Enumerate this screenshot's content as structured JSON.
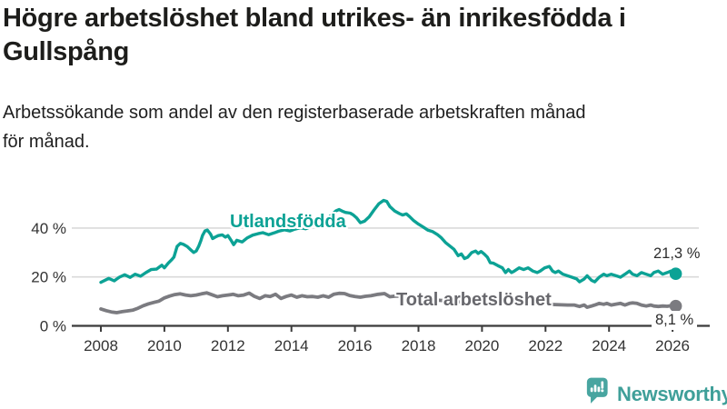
{
  "header": {
    "title": "Högre arbetslöshet bland utrikes- än inrikesfödda i\nGullspång",
    "subtitle": "Arbetssökande som andel av den registerbaserade arbetskraften månad\nför månad."
  },
  "footer": {
    "brand": "Newsworthy",
    "brand_color": "#3f9f99",
    "logo_icon": "bar-chart-speech-bubble"
  },
  "chart_data": {
    "type": "line",
    "x_ticks": [
      2008,
      2010,
      2012,
      2014,
      2016,
      2018,
      2020,
      2022,
      2024,
      2026
    ],
    "y_ticks": [
      {
        "value": 0,
        "label": "0 %"
      },
      {
        "value": 20,
        "label": "20 %"
      },
      {
        "value": 40,
        "label": "40 %"
      }
    ],
    "ylim": [
      0,
      55
    ],
    "xlim": [
      2007.2,
      2027.2
    ],
    "grid": "horizontal-only",
    "legend_position": "inline-labels-on-lines",
    "axis_color": "#3b3b3b",
    "gridline_color": "#dadada",
    "series": [
      {
        "id": "utlandsfodda",
        "name": "Utlandsfödda",
        "color": "#0ca295",
        "width": 3.4,
        "end_label": "21,3 %",
        "end_value": 21.3,
        "points": [
          [
            2008.0,
            17.8
          ],
          [
            2008.25,
            19.4
          ],
          [
            2008.42,
            18.4
          ],
          [
            2008.58,
            19.9
          ],
          [
            2008.75,
            20.9
          ],
          [
            2008.92,
            19.8
          ],
          [
            2009.08,
            21.1
          ],
          [
            2009.25,
            20.3
          ],
          [
            2009.42,
            21.8
          ],
          [
            2009.58,
            23.0
          ],
          [
            2009.75,
            23.2
          ],
          [
            2009.92,
            24.8
          ],
          [
            2010.0,
            23.7
          ],
          [
            2010.12,
            25.6
          ],
          [
            2010.22,
            26.9
          ],
          [
            2010.3,
            28.1
          ],
          [
            2010.4,
            32.5
          ],
          [
            2010.5,
            33.7
          ],
          [
            2010.6,
            33.3
          ],
          [
            2010.72,
            32.4
          ],
          [
            2010.82,
            31.2
          ],
          [
            2010.92,
            30.0
          ],
          [
            2011.0,
            30.6
          ],
          [
            2011.08,
            32.5
          ],
          [
            2011.15,
            34.9
          ],
          [
            2011.2,
            36.9
          ],
          [
            2011.28,
            38.8
          ],
          [
            2011.35,
            39.2
          ],
          [
            2011.45,
            37.6
          ],
          [
            2011.52,
            35.7
          ],
          [
            2011.6,
            36.3
          ],
          [
            2011.7,
            36.9
          ],
          [
            2011.82,
            37.2
          ],
          [
            2011.92,
            36.3
          ],
          [
            2012.0,
            36.9
          ],
          [
            2012.1,
            35.0
          ],
          [
            2012.18,
            33.2
          ],
          [
            2012.28,
            35.0
          ],
          [
            2012.45,
            34.3
          ],
          [
            2012.6,
            35.9
          ],
          [
            2012.78,
            37.1
          ],
          [
            2012.95,
            37.7
          ],
          [
            2013.1,
            38.1
          ],
          [
            2013.28,
            37.3
          ],
          [
            2013.45,
            38.0
          ],
          [
            2013.6,
            38.7
          ],
          [
            2013.78,
            39.3
          ],
          [
            2013.95,
            38.8
          ],
          [
            2014.1,
            39.5
          ],
          [
            2014.28,
            40.1
          ],
          [
            2014.45,
            39.7
          ],
          [
            2014.6,
            40.5
          ],
          [
            2014.78,
            41.2
          ],
          [
            2014.95,
            42.2
          ],
          [
            2015.1,
            43.5
          ],
          [
            2015.25,
            45.2
          ],
          [
            2015.4,
            47.0
          ],
          [
            2015.5,
            47.6
          ],
          [
            2015.6,
            46.9
          ],
          [
            2015.7,
            46.4
          ],
          [
            2015.85,
            46.1
          ],
          [
            2015.95,
            45.3
          ],
          [
            2016.05,
            44.2
          ],
          [
            2016.17,
            42.2
          ],
          [
            2016.3,
            42.8
          ],
          [
            2016.45,
            44.6
          ],
          [
            2016.6,
            47.4
          ],
          [
            2016.75,
            49.9
          ],
          [
            2016.9,
            51.3
          ],
          [
            2017.0,
            50.9
          ],
          [
            2017.1,
            48.8
          ],
          [
            2017.25,
            47.0
          ],
          [
            2017.4,
            45.9
          ],
          [
            2017.5,
            45.3
          ],
          [
            2017.62,
            45.8
          ],
          [
            2017.72,
            44.7
          ],
          [
            2017.85,
            43.0
          ],
          [
            2018.0,
            41.6
          ],
          [
            2018.15,
            40.4
          ],
          [
            2018.3,
            39.1
          ],
          [
            2018.45,
            38.5
          ],
          [
            2018.6,
            37.3
          ],
          [
            2018.72,
            36.0
          ],
          [
            2018.85,
            34.1
          ],
          [
            2019.0,
            32.5
          ],
          [
            2019.12,
            31.3
          ],
          [
            2019.25,
            28.7
          ],
          [
            2019.35,
            29.4
          ],
          [
            2019.45,
            27.5
          ],
          [
            2019.55,
            28.1
          ],
          [
            2019.68,
            30.0
          ],
          [
            2019.8,
            30.6
          ],
          [
            2019.88,
            29.6
          ],
          [
            2019.97,
            30.4
          ],
          [
            2020.07,
            29.4
          ],
          [
            2020.17,
            28.1
          ],
          [
            2020.26,
            25.8
          ],
          [
            2020.36,
            25.6
          ],
          [
            2020.5,
            24.6
          ],
          [
            2020.64,
            23.7
          ],
          [
            2020.74,
            21.8
          ],
          [
            2020.83,
            23.0
          ],
          [
            2020.93,
            21.8
          ],
          [
            2021.02,
            22.4
          ],
          [
            2021.17,
            23.7
          ],
          [
            2021.31,
            23.0
          ],
          [
            2021.45,
            23.7
          ],
          [
            2021.6,
            22.4
          ],
          [
            2021.74,
            21.8
          ],
          [
            2021.83,
            22.4
          ],
          [
            2021.97,
            23.7
          ],
          [
            2022.12,
            24.3
          ],
          [
            2022.22,
            22.4
          ],
          [
            2022.31,
            21.8
          ],
          [
            2022.41,
            22.4
          ],
          [
            2022.55,
            21.1
          ],
          [
            2022.69,
            20.5
          ],
          [
            2022.83,
            19.9
          ],
          [
            2022.98,
            19.2
          ],
          [
            2023.07,
            18.0
          ],
          [
            2023.22,
            19.2
          ],
          [
            2023.31,
            20.5
          ],
          [
            2023.45,
            18.6
          ],
          [
            2023.55,
            18.0
          ],
          [
            2023.69,
            19.9
          ],
          [
            2023.83,
            21.1
          ],
          [
            2023.93,
            20.5
          ],
          [
            2024.07,
            21.1
          ],
          [
            2024.22,
            20.5
          ],
          [
            2024.36,
            19.9
          ],
          [
            2024.5,
            21.1
          ],
          [
            2024.64,
            22.4
          ],
          [
            2024.74,
            21.1
          ],
          [
            2024.88,
            20.5
          ],
          [
            2025.02,
            21.8
          ],
          [
            2025.17,
            21.1
          ],
          [
            2025.31,
            20.5
          ],
          [
            2025.41,
            21.8
          ],
          [
            2025.55,
            22.4
          ],
          [
            2025.69,
            21.1
          ],
          [
            2025.83,
            21.8
          ],
          [
            2025.95,
            22.4
          ],
          [
            2026.1,
            21.3
          ]
        ]
      },
      {
        "id": "total",
        "name": "Total arbetslöshet",
        "color": "#7b7b80",
        "width": 3.8,
        "end_label": "8,1 %",
        "end_value": 8.1,
        "points": [
          [
            2008.0,
            6.9
          ],
          [
            2008.17,
            6.2
          ],
          [
            2008.33,
            5.7
          ],
          [
            2008.5,
            5.4
          ],
          [
            2008.67,
            5.8
          ],
          [
            2008.83,
            6.1
          ],
          [
            2009.0,
            6.4
          ],
          [
            2009.17,
            7.2
          ],
          [
            2009.33,
            8.2
          ],
          [
            2009.5,
            9.0
          ],
          [
            2009.67,
            9.6
          ],
          [
            2009.83,
            10.1
          ],
          [
            2010.0,
            11.4
          ],
          [
            2010.17,
            12.2
          ],
          [
            2010.33,
            12.8
          ],
          [
            2010.5,
            13.1
          ],
          [
            2010.67,
            12.6
          ],
          [
            2010.83,
            12.3
          ],
          [
            2011.0,
            12.6
          ],
          [
            2011.17,
            13.1
          ],
          [
            2011.33,
            13.5
          ],
          [
            2011.5,
            12.7
          ],
          [
            2011.67,
            11.9
          ],
          [
            2011.83,
            12.3
          ],
          [
            2012.0,
            12.6
          ],
          [
            2012.17,
            12.9
          ],
          [
            2012.33,
            12.3
          ],
          [
            2012.5,
            12.6
          ],
          [
            2012.67,
            13.4
          ],
          [
            2012.83,
            12.1
          ],
          [
            2013.0,
            11.2
          ],
          [
            2013.17,
            12.3
          ],
          [
            2013.33,
            12.0
          ],
          [
            2013.5,
            12.9
          ],
          [
            2013.67,
            11.2
          ],
          [
            2013.83,
            12.0
          ],
          [
            2014.0,
            12.6
          ],
          [
            2014.17,
            11.7
          ],
          [
            2014.33,
            12.3
          ],
          [
            2014.5,
            11.9
          ],
          [
            2014.67,
            12.0
          ],
          [
            2014.83,
            11.7
          ],
          [
            2015.0,
            12.3
          ],
          [
            2015.17,
            11.7
          ],
          [
            2015.33,
            12.9
          ],
          [
            2015.5,
            13.3
          ],
          [
            2015.67,
            13.2
          ],
          [
            2015.83,
            12.4
          ],
          [
            2016.0,
            12.0
          ],
          [
            2016.17,
            11.7
          ],
          [
            2016.33,
            12.1
          ],
          [
            2016.5,
            12.3
          ],
          [
            2016.73,
            12.9
          ],
          [
            2016.93,
            13.2
          ],
          [
            2017.1,
            11.9
          ],
          [
            2017.3,
            12.2
          ],
          [
            2017.5,
            12.0
          ],
          [
            2017.7,
            11.6
          ],
          [
            2017.9,
            11.2
          ],
          [
            2018.1,
            10.9
          ],
          [
            2018.3,
            10.7
          ],
          [
            2018.5,
            10.6
          ],
          [
            2018.7,
            10.4
          ],
          [
            2018.9,
            10.2
          ],
          [
            2019.1,
            10.0
          ],
          [
            2019.3,
            9.9
          ],
          [
            2019.5,
            9.8
          ],
          [
            2019.7,
            9.9
          ],
          [
            2019.9,
            10.2
          ],
          [
            2020.1,
            10.6
          ],
          [
            2020.3,
            10.8
          ],
          [
            2020.5,
            10.6
          ],
          [
            2020.7,
            10.3
          ],
          [
            2020.9,
            10.0
          ],
          [
            2021.1,
            9.7
          ],
          [
            2021.3,
            9.4
          ],
          [
            2021.5,
            9.2
          ],
          [
            2021.7,
            9.0
          ],
          [
            2021.9,
            8.9
          ],
          [
            2022.1,
            8.8
          ],
          [
            2022.3,
            8.7
          ],
          [
            2022.5,
            8.6
          ],
          [
            2022.7,
            8.5
          ],
          [
            2022.9,
            8.5
          ],
          [
            2023.07,
            7.9
          ],
          [
            2023.22,
            8.5
          ],
          [
            2023.31,
            7.6
          ],
          [
            2023.45,
            8.1
          ],
          [
            2023.55,
            8.5
          ],
          [
            2023.69,
            9.2
          ],
          [
            2023.83,
            8.8
          ],
          [
            2023.93,
            9.2
          ],
          [
            2024.07,
            8.5
          ],
          [
            2024.22,
            8.9
          ],
          [
            2024.36,
            9.2
          ],
          [
            2024.5,
            8.5
          ],
          [
            2024.64,
            9.2
          ],
          [
            2024.74,
            9.4
          ],
          [
            2024.88,
            9.2
          ],
          [
            2025.02,
            8.5
          ],
          [
            2025.17,
            8.1
          ],
          [
            2025.31,
            8.5
          ],
          [
            2025.41,
            8.1
          ],
          [
            2025.55,
            7.9
          ],
          [
            2025.69,
            8.1
          ],
          [
            2025.83,
            8.0
          ],
          [
            2025.95,
            8.2
          ],
          [
            2026.1,
            8.1
          ]
        ]
      }
    ]
  }
}
